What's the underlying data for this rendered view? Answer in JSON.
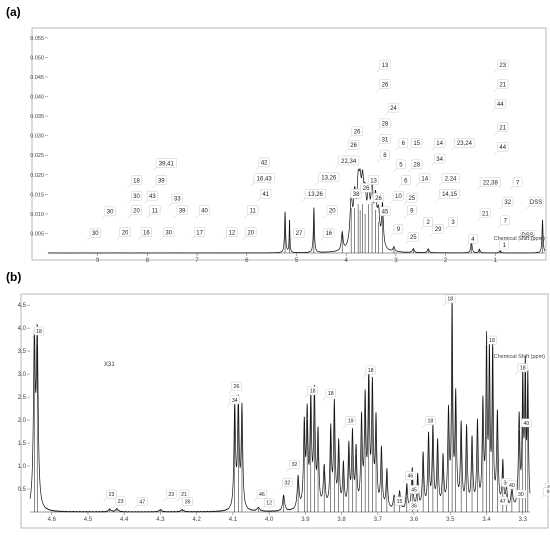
{
  "chart_data": [
    {
      "panel_label": "(a)",
      "type": "line",
      "xlabel": "Chemical Shift (ppm)",
      "xlim": [
        10,
        0
      ],
      "ylim": [
        0,
        0.057
      ],
      "y_ticks": [
        0.005,
        0.01,
        0.015,
        0.02,
        0.025,
        0.03,
        0.035,
        0.04,
        0.045,
        0.05,
        0.055
      ],
      "y_tick_labels": [
        "0.005",
        "0.010",
        "0.015",
        "0.020",
        "0.025",
        "0.030",
        "0.035",
        "0.040",
        "0.045",
        "0.050",
        "0.055"
      ],
      "x_ticks": [
        9,
        8,
        7,
        6,
        5,
        4,
        3,
        2,
        1
      ],
      "x_tick_labels": [
        "9",
        "8",
        "7",
        "6",
        "5",
        "4",
        "3",
        "2",
        "1"
      ],
      "peaks": [
        {
          "x": 5.23,
          "y": 0.0105,
          "w": 0.012
        },
        {
          "x": 5.14,
          "y": 0.0085,
          "w": 0.008
        },
        {
          "x": 4.65,
          "y": 0.0115,
          "w": 0.012
        },
        {
          "x": 4.08,
          "y": 0.0046,
          "w": 0.02
        },
        {
          "x": 3.9,
          "y": 0.0115,
          "w": 0.03
        },
        {
          "x": 3.83,
          "y": 0.0115,
          "w": 0.03
        },
        {
          "x": 3.76,
          "y": 0.0125,
          "w": 0.03
        },
        {
          "x": 3.72,
          "y": 0.011,
          "w": 0.03
        },
        {
          "x": 3.67,
          "y": 0.0125,
          "w": 0.03
        },
        {
          "x": 3.62,
          "y": 0.01,
          "w": 0.03
        },
        {
          "x": 3.55,
          "y": 0.0125,
          "w": 0.03
        },
        {
          "x": 3.48,
          "y": 0.013,
          "w": 0.03
        },
        {
          "x": 3.41,
          "y": 0.011,
          "w": 0.03
        },
        {
          "x": 3.35,
          "y": 0.008,
          "w": 0.03
        },
        {
          "x": 3.27,
          "y": 0.011,
          "w": 0.02
        },
        {
          "x": 3.04,
          "y": 0.0012,
          "w": 0.02
        },
        {
          "x": 2.65,
          "y": 0.001,
          "w": 0.02
        },
        {
          "x": 2.35,
          "y": 0.001,
          "w": 0.02
        },
        {
          "x": 1.48,
          "y": 0.003,
          "w": 0.015
        },
        {
          "x": 1.32,
          "y": 0.001,
          "w": 0.015
        },
        {
          "x": 0.9,
          "y": 0.0006,
          "w": 0.015
        },
        {
          "x": 0.05,
          "y": 0.0085,
          "w": 0.012
        }
      ],
      "labels": [
        {
          "text": "30",
          "x": 9.05,
          "y": 0.004
        },
        {
          "text": "30",
          "x": 8.75,
          "y": 0.0095
        },
        {
          "text": "20",
          "x": 8.45,
          "y": 0.0042
        },
        {
          "text": "30",
          "x": 8.22,
          "y": 0.0135
        },
        {
          "text": "20",
          "x": 8.22,
          "y": 0.0098
        },
        {
          "text": "18",
          "x": 8.22,
          "y": 0.0175
        },
        {
          "text": "16",
          "x": 8.02,
          "y": 0.0042
        },
        {
          "text": "43",
          "x": 7.9,
          "y": 0.0135
        },
        {
          "text": "11",
          "x": 7.85,
          "y": 0.0098
        },
        {
          "text": "39",
          "x": 7.72,
          "y": 0.0175
        },
        {
          "text": "39,41",
          "x": 7.62,
          "y": 0.0218
        },
        {
          "text": "30",
          "x": 7.57,
          "y": 0.0042
        },
        {
          "text": "33",
          "x": 7.4,
          "y": 0.0128
        },
        {
          "text": "39",
          "x": 7.3,
          "y": 0.0098
        },
        {
          "text": "17",
          "x": 6.95,
          "y": 0.0042
        },
        {
          "text": "40",
          "x": 6.85,
          "y": 0.0098
        },
        {
          "text": "12",
          "x": 6.3,
          "y": 0.0042
        },
        {
          "text": "20",
          "x": 5.92,
          "y": 0.0042
        },
        {
          "text": "11",
          "x": 5.88,
          "y": 0.0098
        },
        {
          "text": "42",
          "x": 5.65,
          "y": 0.022
        },
        {
          "text": "16,43",
          "x": 5.65,
          "y": 0.018
        },
        {
          "text": "41",
          "x": 5.62,
          "y": 0.014
        },
        {
          "text": "27",
          "x": 4.95,
          "y": 0.004
        },
        {
          "text": "13,26",
          "x": 4.62,
          "y": 0.014
        },
        {
          "text": "13,26",
          "x": 4.35,
          "y": 0.0182
        },
        {
          "text": "16",
          "x": 4.35,
          "y": 0.004
        },
        {
          "text": "20",
          "x": 4.28,
          "y": 0.0098
        },
        {
          "text": "22,34",
          "x": 3.95,
          "y": 0.0225
        },
        {
          "text": "26",
          "x": 3.85,
          "y": 0.0265
        },
        {
          "text": "26",
          "x": 3.78,
          "y": 0.03
        },
        {
          "text": "38",
          "x": 3.8,
          "y": 0.014
        },
        {
          "text": "26",
          "x": 3.6,
          "y": 0.0155
        },
        {
          "text": "13",
          "x": 3.45,
          "y": 0.0175
        },
        {
          "text": "26",
          "x": 3.35,
          "y": 0.013
        },
        {
          "text": "45",
          "x": 3.22,
          "y": 0.0095
        },
        {
          "text": "31",
          "x": 3.22,
          "y": 0.028
        },
        {
          "text": "8",
          "x": 3.22,
          "y": 0.024
        },
        {
          "text": "28",
          "x": 3.22,
          "y": 0.032
        },
        {
          "text": "24",
          "x": 3.05,
          "y": 0.036
        },
        {
          "text": "26",
          "x": 3.22,
          "y": 0.042
        },
        {
          "text": "13",
          "x": 3.22,
          "y": 0.047
        },
        {
          "text": "10",
          "x": 2.95,
          "y": 0.0135
        },
        {
          "text": "9",
          "x": 2.95,
          "y": 0.005
        },
        {
          "text": "5",
          "x": 2.9,
          "y": 0.0215
        },
        {
          "text": "6",
          "x": 2.85,
          "y": 0.027
        },
        {
          "text": "6",
          "x": 2.8,
          "y": 0.0175
        },
        {
          "text": "9",
          "x": 2.68,
          "y": 0.0098
        },
        {
          "text": "25",
          "x": 2.68,
          "y": 0.013
        },
        {
          "text": "25",
          "x": 2.65,
          "y": 0.003
        },
        {
          "text": "15",
          "x": 2.58,
          "y": 0.027
        },
        {
          "text": "28",
          "x": 2.58,
          "y": 0.0215
        },
        {
          "text": "14",
          "x": 2.42,
          "y": 0.018
        },
        {
          "text": "2",
          "x": 2.35,
          "y": 0.0068
        },
        {
          "text": "29",
          "x": 2.15,
          "y": 0.005
        },
        {
          "text": "14",
          "x": 2.12,
          "y": 0.027
        },
        {
          "text": "34",
          "x": 2.12,
          "y": 0.023
        },
        {
          "text": "2,24",
          "x": 1.9,
          "y": 0.018
        },
        {
          "text": "14,15",
          "x": 1.92,
          "y": 0.014
        },
        {
          "text": "3",
          "x": 1.85,
          "y": 0.0068
        },
        {
          "text": "23,24",
          "x": 1.62,
          "y": 0.027
        },
        {
          "text": "4",
          "x": 1.45,
          "y": 0.0025
        },
        {
          "text": "21",
          "x": 1.2,
          "y": 0.009
        },
        {
          "text": "22,38",
          "x": 1.1,
          "y": 0.017
        },
        {
          "text": "23",
          "x": 0.85,
          "y": 0.047
        },
        {
          "text": "21",
          "x": 0.85,
          "y": 0.042
        },
        {
          "text": "44",
          "x": 0.9,
          "y": 0.037
        },
        {
          "text": "21",
          "x": 0.85,
          "y": 0.031
        },
        {
          "text": "44",
          "x": 0.85,
          "y": 0.026
        },
        {
          "text": "7",
          "x": 0.55,
          "y": 0.017
        },
        {
          "text": "32",
          "x": 0.75,
          "y": 0.012
        },
        {
          "text": "7",
          "x": 0.8,
          "y": 0.0072
        },
        {
          "text": "1",
          "x": 0.82,
          "y": 0.001
        },
        {
          "text": "DSS",
          "x": 0.35,
          "y": 0.0035
        },
        {
          "text": "DSS",
          "x": 0.18,
          "y": 0.012
        }
      ]
    },
    {
      "panel_label": "(b)",
      "type": "line",
      "xlabel": "Chemical Shift (ppm)",
      "ylabel": "(x10^-3)",
      "annotation": "X31",
      "xlim": [
        4.66,
        3.28
      ],
      "ylim": [
        0,
        4.7
      ],
      "y_ticks": [
        0.5,
        1.0,
        1.5,
        2.0,
        2.5,
        3.0,
        3.5,
        4.0,
        4.5
      ],
      "y_tick_labels": [
        "0.5",
        "1.0",
        "1.5",
        "2.0",
        "2.5",
        "3.0",
        "3.5",
        "4.0",
        "4.5"
      ],
      "x_ticks": [
        4.6,
        4.5,
        4.4,
        4.3,
        4.2,
        4.1,
        4.0,
        3.9,
        3.8,
        3.7,
        3.6,
        3.5,
        3.4,
        3.3
      ],
      "x_tick_labels": [
        "4.6",
        "4.5",
        "4.4",
        "4.3",
        "4.2",
        "4.1",
        "4.0",
        "3.9",
        "3.8",
        "3.7",
        "3.6",
        "3.5",
        "3.4",
        "3.3"
      ],
      "peaks": [
        {
          "x": 4.648,
          "y": 3.55,
          "w": 0.003
        },
        {
          "x": 4.64,
          "y": 3.65,
          "w": 0.003
        },
        {
          "x": 4.44,
          "y": 0.06,
          "w": 0.004
        },
        {
          "x": 4.42,
          "y": 0.07,
          "w": 0.004
        },
        {
          "x": 4.3,
          "y": 0.05,
          "w": 0.004
        },
        {
          "x": 4.24,
          "y": 0.05,
          "w": 0.004
        },
        {
          "x": 4.095,
          "y": 2.25,
          "w": 0.0025
        },
        {
          "x": 4.085,
          "y": 2.3,
          "w": 0.0025
        },
        {
          "x": 4.075,
          "y": 2.2,
          "w": 0.0025
        },
        {
          "x": 4.03,
          "y": 0.08,
          "w": 0.004
        },
        {
          "x": 3.96,
          "y": 0.35,
          "w": 0.003
        },
        {
          "x": 3.92,
          "y": 0.7,
          "w": 0.003
        },
        {
          "x": 3.903,
          "y": 1.8,
          "w": 0.0025
        },
        {
          "x": 3.895,
          "y": 2.0,
          "w": 0.0025
        },
        {
          "x": 3.885,
          "y": 2.3,
          "w": 0.0025
        },
        {
          "x": 3.875,
          "y": 2.45,
          "w": 0.0025
        },
        {
          "x": 3.865,
          "y": 1.6,
          "w": 0.0025
        },
        {
          "x": 3.848,
          "y": 0.9,
          "w": 0.003
        },
        {
          "x": 3.83,
          "y": 1.7,
          "w": 0.0025
        },
        {
          "x": 3.82,
          "y": 2.25,
          "w": 0.0025
        },
        {
          "x": 3.808,
          "y": 1.4,
          "w": 0.0025
        },
        {
          "x": 3.795,
          "y": 0.95,
          "w": 0.0025
        },
        {
          "x": 3.78,
          "y": 1.35,
          "w": 0.0025
        },
        {
          "x": 3.77,
          "y": 1.6,
          "w": 0.0025
        },
        {
          "x": 3.76,
          "y": 1.25,
          "w": 0.0025
        },
        {
          "x": 3.745,
          "y": 1.9,
          "w": 0.0025
        },
        {
          "x": 3.735,
          "y": 2.3,
          "w": 0.0025
        },
        {
          "x": 3.725,
          "y": 2.8,
          "w": 0.0025
        },
        {
          "x": 3.715,
          "y": 2.6,
          "w": 0.0025
        },
        {
          "x": 3.705,
          "y": 1.9,
          "w": 0.0025
        },
        {
          "x": 3.69,
          "y": 1.3,
          "w": 0.0025
        },
        {
          "x": 3.675,
          "y": 0.85,
          "w": 0.0025
        },
        {
          "x": 3.655,
          "y": 0.3,
          "w": 0.003
        },
        {
          "x": 3.64,
          "y": 0.4,
          "w": 0.003
        },
        {
          "x": 3.62,
          "y": 0.55,
          "w": 0.0025
        },
        {
          "x": 3.605,
          "y": 0.9,
          "w": 0.0025
        },
        {
          "x": 3.59,
          "y": 0.75,
          "w": 0.0025
        },
        {
          "x": 3.575,
          "y": 1.2,
          "w": 0.0025
        },
        {
          "x": 3.56,
          "y": 1.6,
          "w": 0.0025
        },
        {
          "x": 3.548,
          "y": 1.75,
          "w": 0.0025
        },
        {
          "x": 3.535,
          "y": 1.45,
          "w": 0.0025
        },
        {
          "x": 3.52,
          "y": 1.1,
          "w": 0.0025
        },
        {
          "x": 3.505,
          "y": 2.05,
          "w": 0.0025
        },
        {
          "x": 3.495,
          "y": 4.4,
          "w": 0.002
        },
        {
          "x": 3.485,
          "y": 2.4,
          "w": 0.0025
        },
        {
          "x": 3.47,
          "y": 1.8,
          "w": 0.0025
        },
        {
          "x": 3.455,
          "y": 1.75,
          "w": 0.0025
        },
        {
          "x": 3.44,
          "y": 1.5,
          "w": 0.0025
        },
        {
          "x": 3.425,
          "y": 1.85,
          "w": 0.0025
        },
        {
          "x": 3.41,
          "y": 2.25,
          "w": 0.0025
        },
        {
          "x": 3.4,
          "y": 3.5,
          "w": 0.002
        },
        {
          "x": 3.392,
          "y": 3.3,
          "w": 0.002
        },
        {
          "x": 3.383,
          "y": 3.45,
          "w": 0.002
        },
        {
          "x": 3.37,
          "y": 2.05,
          "w": 0.0025
        },
        {
          "x": 3.355,
          "y": 1.0,
          "w": 0.0025
        },
        {
          "x": 3.345,
          "y": 0.4,
          "w": 0.003
        },
        {
          "x": 3.33,
          "y": 0.45,
          "w": 0.003
        },
        {
          "x": 3.31,
          "y": 2.0,
          "w": 0.0025
        },
        {
          "x": 3.3,
          "y": 2.8,
          "w": 0.002
        },
        {
          "x": 3.293,
          "y": 2.95,
          "w": 0.002
        },
        {
          "x": 3.286,
          "y": 2.8,
          "w": 0.002
        }
      ],
      "labels": [
        {
          "text": "18",
          "x": 4.635,
          "y": 3.85
        },
        {
          "text": "23",
          "x": 4.435,
          "y": 0.3
        },
        {
          "text": "23",
          "x": 4.41,
          "y": 0.15
        },
        {
          "text": "47",
          "x": 4.35,
          "y": 0.14
        },
        {
          "text": "23",
          "x": 4.27,
          "y": 0.3
        },
        {
          "text": "21",
          "x": 4.235,
          "y": 0.3
        },
        {
          "text": "39",
          "x": 4.225,
          "y": 0.14
        },
        {
          "text": "26",
          "x": 4.09,
          "y": 2.65
        },
        {
          "text": "34",
          "x": 4.095,
          "y": 2.35
        },
        {
          "text": "46",
          "x": 4.02,
          "y": 0.3
        },
        {
          "text": "12",
          "x": 4.0,
          "y": 0.11
        },
        {
          "text": "32",
          "x": 3.95,
          "y": 0.55
        },
        {
          "text": "32",
          "x": 3.93,
          "y": 0.95
        },
        {
          "text": "18",
          "x": 3.88,
          "y": 2.55
        },
        {
          "text": "18",
          "x": 3.83,
          "y": 2.5
        },
        {
          "text": "19",
          "x": 3.775,
          "y": 1.9
        },
        {
          "text": "18",
          "x": 3.72,
          "y": 3.0
        },
        {
          "text": "46",
          "x": 3.61,
          "y": 0.7
        },
        {
          "text": "45",
          "x": 3.6,
          "y": 0.4
        },
        {
          "text": "15",
          "x": 3.64,
          "y": 0.15
        },
        {
          "text": "36",
          "x": 3.6,
          "y": 0.05
        },
        {
          "text": "18",
          "x": 3.555,
          "y": 1.9
        },
        {
          "text": "18",
          "x": 3.5,
          "y": 4.55
        },
        {
          "text": "18",
          "x": 3.385,
          "y": 3.65
        },
        {
          "text": "34",
          "x": 3.345,
          "y": 0.55
        },
        {
          "text": "47",
          "x": 3.355,
          "y": 0.15
        },
        {
          "text": "40",
          "x": 3.33,
          "y": 0.5
        },
        {
          "text": "30",
          "x": 3.305,
          "y": 0.3
        },
        {
          "text": "18",
          "x": 3.3,
          "y": 3.05
        },
        {
          "text": "40",
          "x": 3.29,
          "y": 1.85
        }
      ],
      "small_peaks_right": [
        {
          "x": 3.22,
          "y": 0.05
        },
        {
          "x": 3.2,
          "y": 0.06
        },
        {
          "x": 3.18,
          "y": 0.05
        },
        {
          "x": 3.15,
          "y": 0.05
        }
      ],
      "extra_labels_right": [
        {
          "text": "42",
          "x": 3.225,
          "y": 0.45
        },
        {
          "text": "9",
          "x": 3.23,
          "y": 0.35
        },
        {
          "text": "33",
          "x": 3.205,
          "y": 0.1
        },
        {
          "text": "30",
          "x": 3.19,
          "y": 0.3
        },
        {
          "text": "42",
          "x": 3.175,
          "y": 0.1
        },
        {
          "text": "28",
          "x": 3.14,
          "y": 0.55
        },
        {
          "text": "12",
          "x": 3.14,
          "y": 0.35
        },
        {
          "text": "11",
          "x": 3.14,
          "y": 0.13
        }
      ]
    }
  ]
}
